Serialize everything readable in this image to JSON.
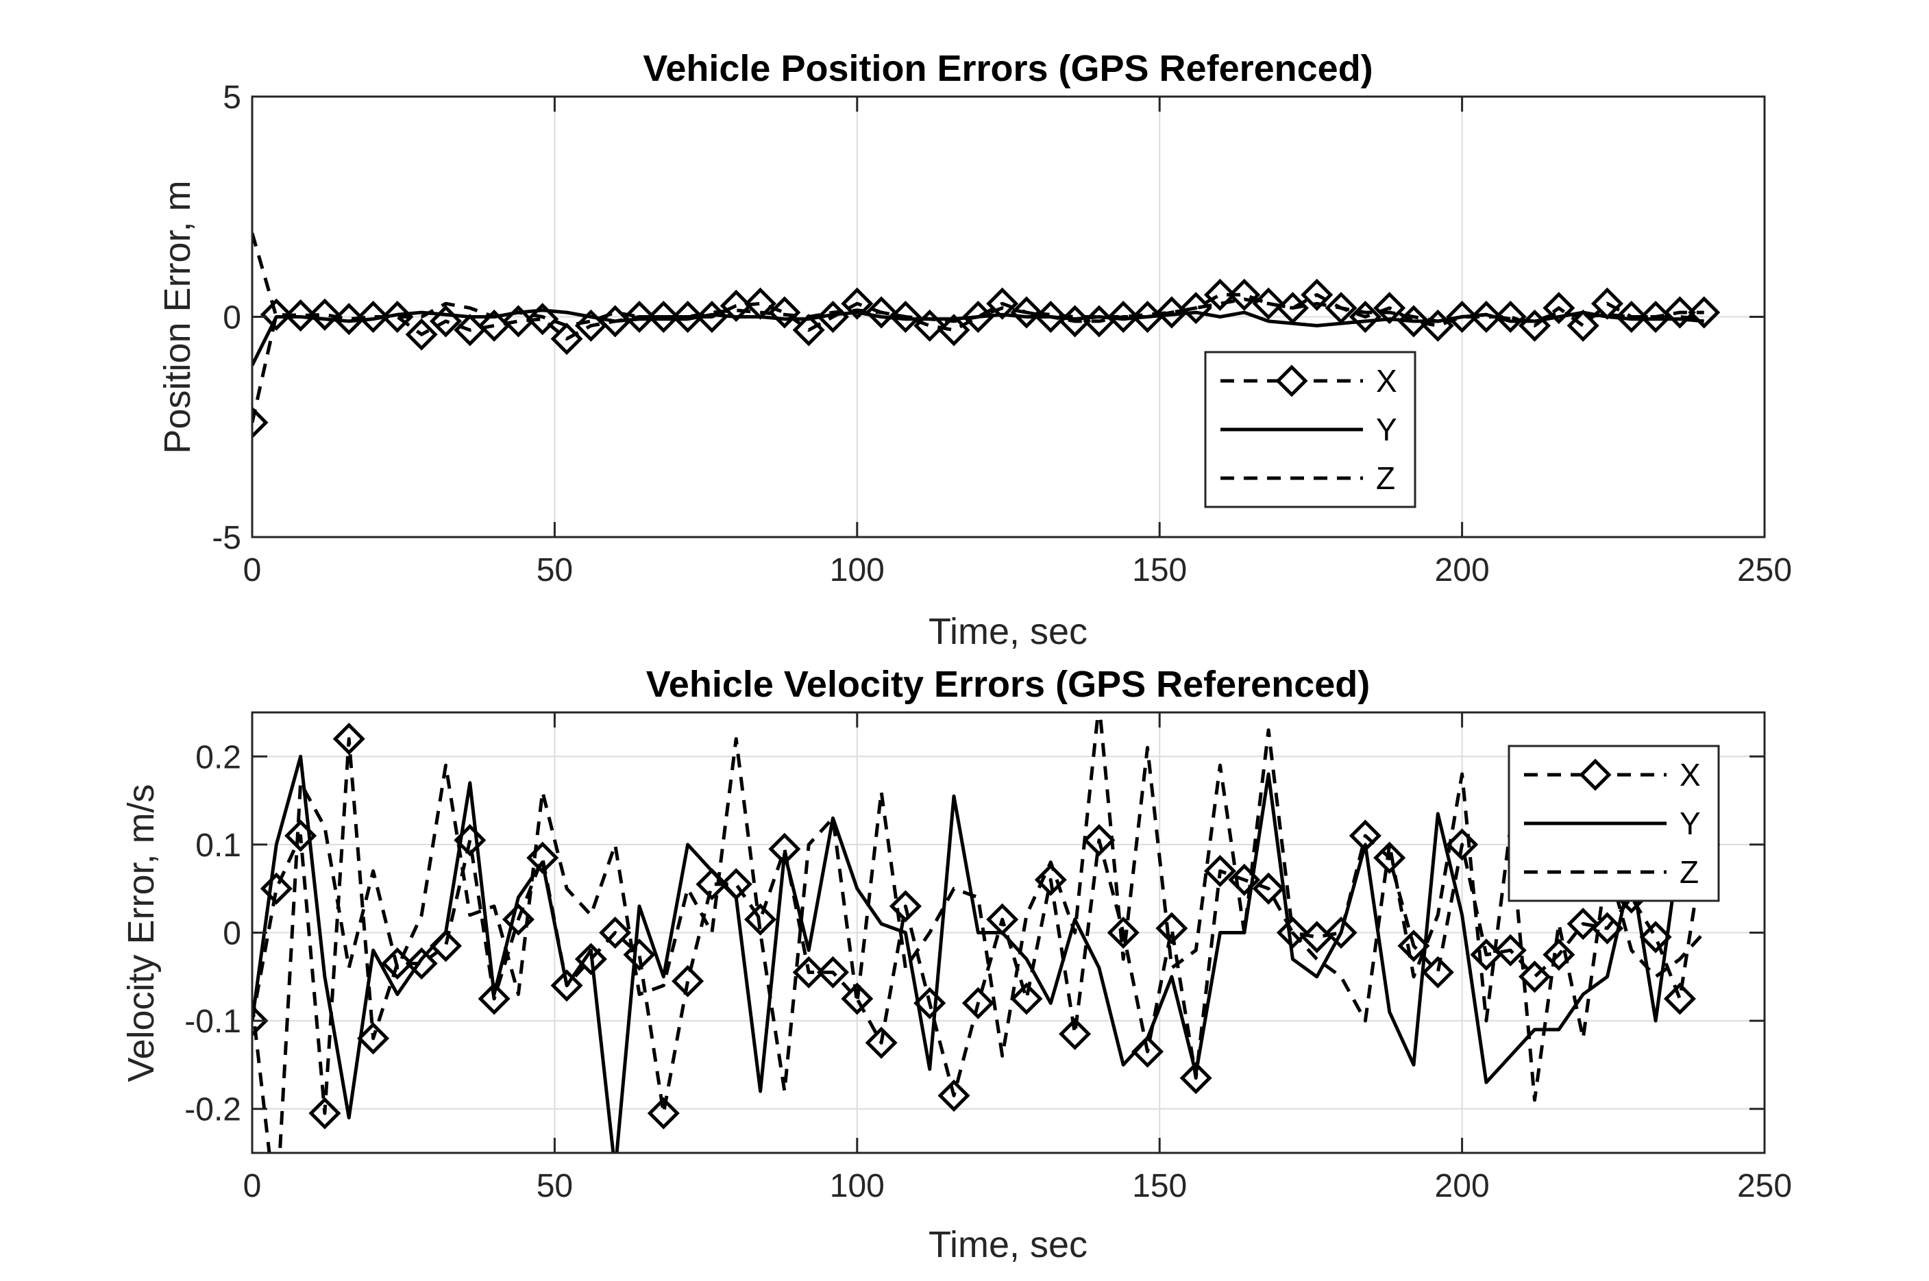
{
  "chart_data": [
    {
      "type": "line",
      "title": "Vehicle Position Errors (GPS Referenced)",
      "xlabel": "Time, sec",
      "ylabel": "Position Error, m",
      "xlim": [
        0,
        250
      ],
      "ylim": [
        -5,
        5
      ],
      "xticks": [
        0,
        50,
        100,
        150,
        200,
        250
      ],
      "yticks": [
        -5,
        0,
        5
      ],
      "xtick_labels": [
        "0",
        "50",
        "100",
        "150",
        "200",
        "250"
      ],
      "ytick_labels": [
        "-5",
        "0",
        "5"
      ],
      "grid": true,
      "legend_placement": "lower-right",
      "x": [
        0,
        4,
        8,
        12,
        16,
        20,
        24,
        28,
        32,
        36,
        40,
        44,
        48,
        52,
        56,
        60,
        64,
        68,
        72,
        76,
        80,
        84,
        88,
        92,
        96,
        100,
        104,
        108,
        112,
        116,
        120,
        124,
        128,
        132,
        136,
        140,
        144,
        148,
        152,
        156,
        160,
        164,
        168,
        172,
        176,
        180,
        184,
        188,
        192,
        196,
        200,
        204,
        208,
        212,
        216,
        220,
        224,
        228,
        232,
        236,
        240
      ],
      "series": [
        {
          "name": "X",
          "style": "dashed-diamond",
          "values": [
            -2.4,
            0.05,
            0.03,
            0.05,
            -0.05,
            0.0,
            0.0,
            -0.4,
            -0.1,
            -0.3,
            -0.2,
            -0.1,
            -0.05,
            -0.5,
            -0.2,
            -0.1,
            0.0,
            0.0,
            0.0,
            0.0,
            0.25,
            0.3,
            0.1,
            -0.3,
            0.0,
            0.3,
            0.1,
            0.0,
            -0.2,
            -0.3,
            0.0,
            0.3,
            0.1,
            0.0,
            -0.1,
            -0.1,
            0.0,
            0.0,
            0.1,
            0.2,
            0.5,
            0.5,
            0.3,
            0.2,
            0.5,
            0.2,
            0.0,
            0.2,
            -0.1,
            -0.2,
            0.0,
            0.0,
            0.0,
            -0.2,
            0.2,
            -0.2,
            0.3,
            0.0,
            0.0,
            0.1,
            0.1
          ]
        },
        {
          "name": "Y",
          "style": "solid",
          "values": [
            -1.1,
            0.0,
            0.0,
            -0.05,
            -0.1,
            -0.05,
            0.05,
            0.1,
            0.05,
            0.0,
            0.0,
            0.1,
            0.15,
            0.1,
            0.0,
            -0.1,
            -0.05,
            -0.05,
            -0.05,
            0.05,
            0.0,
            0.0,
            -0.05,
            -0.05,
            0.05,
            0.1,
            0.0,
            -0.05,
            -0.05,
            -0.05,
            0.0,
            0.05,
            0.0,
            0.0,
            -0.05,
            0.0,
            -0.05,
            0.0,
            0.05,
            0.1,
            0.0,
            0.1,
            -0.1,
            -0.15,
            -0.2,
            -0.15,
            -0.1,
            -0.05,
            -0.1,
            -0.1,
            0.0,
            0.05,
            -0.1,
            -0.1,
            0.0,
            0.1,
            0.0,
            -0.05,
            -0.05,
            -0.05,
            -0.1
          ]
        },
        {
          "name": "Z",
          "style": "dashed",
          "values": [
            1.9,
            0.0,
            0.05,
            -0.05,
            -0.1,
            0.0,
            0.0,
            0.0,
            0.3,
            0.2,
            0.0,
            0.1,
            0.0,
            -0.2,
            -0.1,
            0.1,
            0.0,
            0.0,
            0.0,
            0.1,
            0.15,
            0.1,
            0.05,
            0.0,
            0.1,
            0.15,
            0.1,
            0.0,
            -0.05,
            -0.1,
            0.0,
            0.2,
            0.1,
            0.05,
            0.0,
            0.0,
            0.0,
            0.05,
            0.1,
            0.2,
            0.3,
            0.4,
            0.3,
            0.2,
            0.3,
            0.2,
            0.1,
            0.1,
            0.0,
            -0.1,
            0.0,
            0.05,
            -0.05,
            -0.1,
            0.1,
            0.0,
            0.05,
            0.0,
            0.0,
            0.0,
            -0.05
          ]
        }
      ]
    },
    {
      "type": "line",
      "title": "Vehicle Velocity Errors (GPS Referenced)",
      "xlabel": "Time, sec",
      "ylabel": "Velocity Error, m/s",
      "xlim": [
        0,
        250
      ],
      "ylim": [
        -0.25,
        0.25
      ],
      "xticks": [
        0,
        50,
        100,
        150,
        200,
        250
      ],
      "yticks": [
        -0.2,
        -0.1,
        0,
        0.1,
        0.2
      ],
      "xtick_labels": [
        "0",
        "50",
        "100",
        "150",
        "200",
        "250"
      ],
      "ytick_labels": [
        "-0.2",
        "-0.1",
        "0",
        "0.1",
        "0.2"
      ],
      "grid": true,
      "legend_placement": "top-right",
      "x": [
        0,
        4,
        8,
        12,
        16,
        20,
        24,
        28,
        32,
        36,
        40,
        44,
        48,
        52,
        56,
        60,
        64,
        68,
        72,
        76,
        80,
        84,
        88,
        92,
        96,
        100,
        104,
        108,
        112,
        116,
        120,
        124,
        128,
        132,
        136,
        140,
        144,
        148,
        152,
        156,
        160,
        164,
        168,
        172,
        176,
        180,
        184,
        188,
        192,
        196,
        200,
        204,
        208,
        212,
        216,
        220,
        224,
        228,
        232,
        236,
        240
      ],
      "series": [
        {
          "name": "X",
          "style": "dashed-diamond",
          "values": [
            -0.1,
            0.05,
            0.11,
            -0.205,
            0.22,
            -0.12,
            -0.035,
            -0.035,
            -0.015,
            0.105,
            -0.075,
            0.015,
            0.085,
            -0.06,
            -0.03,
            0.0,
            -0.025,
            -0.205,
            -0.055,
            0.055,
            0.055,
            0.015,
            0.095,
            -0.045,
            -0.045,
            -0.075,
            -0.125,
            0.03,
            -0.08,
            -0.185,
            -0.08,
            0.015,
            -0.075,
            0.06,
            -0.115,
            0.105,
            0.0,
            -0.135,
            0.005,
            -0.165,
            0.07,
            0.06,
            0.05,
            0.0,
            -0.005,
            0.0,
            0.11,
            0.085,
            -0.015,
            -0.045,
            0.1,
            -0.025,
            -0.02,
            -0.05,
            -0.025,
            0.01,
            0.005,
            0.04,
            -0.005,
            -0.075,
            0.1
          ]
        },
        {
          "name": "Y",
          "style": "solid",
          "values": [
            -0.1,
            0.1,
            0.2,
            -0.05,
            -0.21,
            -0.02,
            -0.07,
            -0.03,
            0.0,
            0.17,
            -0.07,
            0.04,
            0.08,
            -0.06,
            -0.02,
            -0.27,
            0.03,
            -0.05,
            0.1,
            0.07,
            0.04,
            -0.18,
            0.09,
            -0.02,
            0.13,
            0.05,
            0.01,
            0.0,
            -0.155,
            0.155,
            0.0,
            0.0,
            -0.03,
            -0.08,
            0.015,
            -0.04,
            -0.15,
            -0.12,
            -0.05,
            -0.16,
            0.0,
            0.0,
            0.18,
            -0.03,
            -0.05,
            0.0,
            0.1,
            -0.09,
            -0.15,
            0.135,
            0.02,
            -0.17,
            -0.14,
            -0.11,
            -0.11,
            -0.07,
            -0.05,
            0.07,
            -0.1,
            0.1,
            0.1
          ]
        },
        {
          "name": "Z",
          "style": "dashed",
          "values": [
            -0.08,
            -0.32,
            0.17,
            0.12,
            -0.04,
            0.07,
            -0.04,
            0.02,
            0.19,
            0.02,
            0.03,
            -0.07,
            0.16,
            0.05,
            0.02,
            0.1,
            -0.07,
            -0.06,
            0.05,
            0.0,
            0.22,
            0.0,
            -0.18,
            0.1,
            0.13,
            -0.08,
            0.16,
            -0.04,
            0.0,
            0.05,
            0.04,
            -0.14,
            0.02,
            0.08,
            0.0,
            0.26,
            -0.03,
            0.21,
            -0.04,
            -0.02,
            0.19,
            0.0,
            0.23,
            0.0,
            -0.03,
            -0.05,
            -0.1,
            0.1,
            -0.05,
            0.02,
            0.18,
            -0.1,
            0.12,
            -0.19,
            0.01,
            -0.12,
            0.08,
            -0.02,
            -0.05,
            -0.03,
            0.0
          ]
        }
      ]
    }
  ]
}
